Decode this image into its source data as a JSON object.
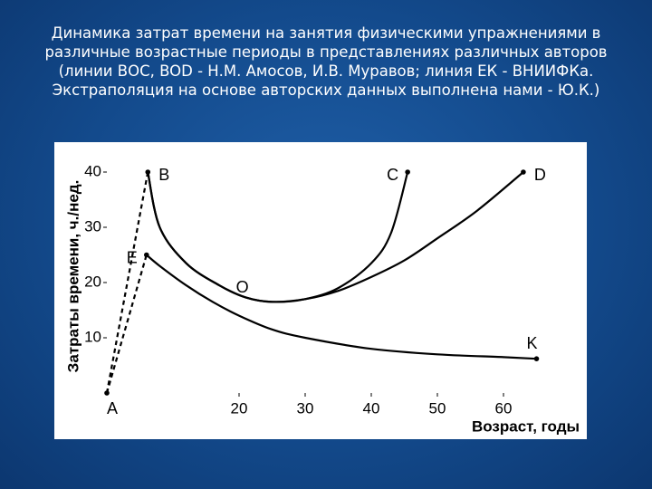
{
  "chart_data": {
    "type": "line",
    "title_lines": [
      "Динамика затрат времени на занятия физическими упражнениями в",
      "различные возрастные периоды в представлениях различных авторов",
      "(линии ВОС, BOD - Н.М. Амосов, И.В. Муравов; линия ЕК - ВНИИФКа.",
      "Экстраполяция на основе авторских данных выполнена нами - Ю.К.)"
    ],
    "y_label": "Затраты времени, ч./нед.",
    "x_label": "Возраст, годы",
    "xlim": [
      0,
      72
    ],
    "ylim": [
      0,
      45
    ],
    "xticks": [
      20,
      30,
      40,
      50,
      60
    ],
    "yticks": [
      10,
      20,
      30,
      40
    ],
    "series": [
      {
        "color": "#000000",
        "style": "dashed",
        "x": [
          0,
          6.2
        ],
        "values": [
          0,
          40
        ]
      },
      {
        "color": "#000000",
        "style": "dashed",
        "x": [
          0,
          6
        ],
        "values": [
          0,
          25
        ]
      },
      {
        "color": "#000000",
        "style": "solid",
        "x": [
          6.2,
          8,
          12,
          17,
          21,
          25,
          30,
          35,
          40,
          43,
          45.5
        ],
        "values": [
          40,
          30,
          23.5,
          19.5,
          17.3,
          16.5,
          17,
          19,
          23.5,
          29,
          40
        ]
      },
      {
        "color": "#000000",
        "style": "solid",
        "x": [
          6.2,
          8,
          12,
          17,
          21,
          25,
          30,
          35,
          40,
          45,
          50,
          56,
          63
        ],
        "values": [
          40,
          30,
          23.5,
          19.5,
          17.3,
          16.5,
          17,
          18.5,
          21,
          24,
          28,
          33,
          40
        ]
      },
      {
        "color": "#000000",
        "style": "solid",
        "x": [
          6,
          8,
          12,
          16,
          20,
          25,
          30,
          40,
          50,
          60,
          65
        ],
        "values": [
          25,
          23,
          19.5,
          16.5,
          14,
          11.5,
          10,
          8,
          7,
          6.5,
          6.2
        ]
      }
    ],
    "points": [
      {
        "label": "A",
        "x": 0,
        "y": 0,
        "marker": true,
        "position": "below"
      },
      {
        "label": "B",
        "x": 6.2,
        "y": 40,
        "marker": true,
        "position": "right"
      },
      {
        "label": "E",
        "x": 6,
        "y": 25,
        "marker": true,
        "position": "left"
      },
      {
        "label": "O",
        "x": 20.5,
        "y": 19,
        "marker": false,
        "position": "center"
      },
      {
        "label": "C",
        "x": 45.5,
        "y": 40,
        "marker": true,
        "position": "left"
      },
      {
        "label": "D",
        "x": 63,
        "y": 40,
        "marker": true,
        "position": "right"
      },
      {
        "label": "K",
        "x": 65,
        "y": 6.2,
        "marker": true,
        "position": "above"
      }
    ]
  }
}
